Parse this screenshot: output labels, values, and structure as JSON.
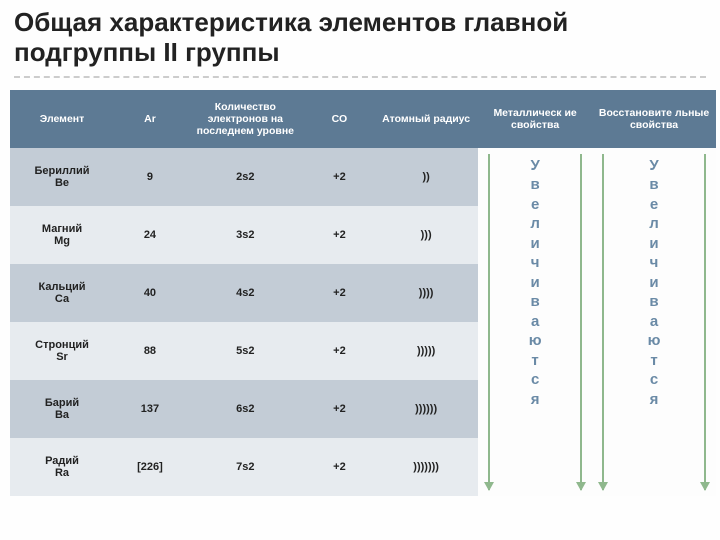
{
  "title": "Общая характеристика элементов главной подгруппы II группы",
  "headers": {
    "element": "Элемент",
    "ar": "Ar",
    "config": "Количество электронов на последнем уровне",
    "co": "СО",
    "radius": "Атомный радиус",
    "metallic": "Металлическ ие свойства",
    "reducing": "Восстановите льные свойства"
  },
  "spanText": "У\nв\nе\nл\nи\nч\nи\nв\nа\nю\nт\nс\nя",
  "rows": [
    {
      "el": "Бериллий\nВе",
      "ar": "9",
      "cfg": "2s2",
      "co": "+2",
      "rad": "))"
    },
    {
      "el": "Магний\nMg",
      "ar": "24",
      "cfg": "3s2",
      "co": "+2",
      "rad": ")))"
    },
    {
      "el": "Кальций\nСа",
      "ar": "40",
      "cfg": "4s2",
      "co": "+2",
      "rad": "))))"
    },
    {
      "el": "Стронций\nSr",
      "ar": "88",
      "cfg": "5s2",
      "co": "+2",
      "rad": ")))))"
    },
    {
      "el": "Барий\nВа",
      "ar": "137",
      "cfg": "6s2",
      "co": "+2",
      "rad": "))))))"
    },
    {
      "el": "Радий\nRa",
      "ar": "[226]",
      "cfg": "7s2",
      "co": "+2",
      "rad": ")))))))"
    }
  ],
  "colors": {
    "header_bg": "#5d7a94",
    "row_dark": "#c3ccd6",
    "row_light": "#e7ebef",
    "arrow": "#8fb88d",
    "span_text": "#6a8aa6"
  }
}
